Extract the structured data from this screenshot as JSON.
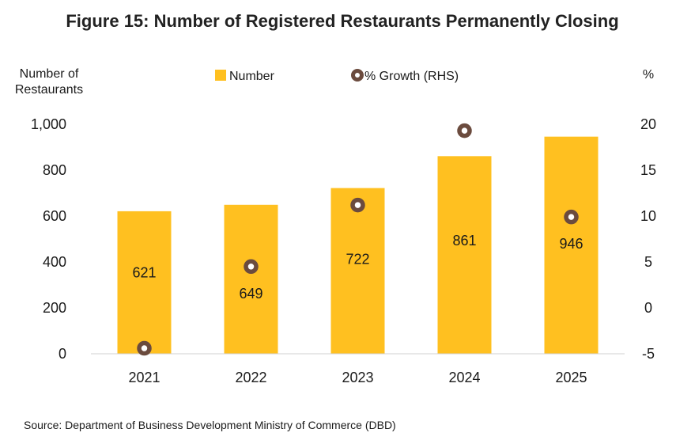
{
  "colors": {
    "bar": "#FFC020",
    "marker_ring": "#6B4B3E",
    "marker_center": "#ffffff"
  },
  "chart_data": {
    "type": "bar",
    "title": "Figure 15: Number of Registered Restaurants Permanently Closing",
    "ylabel_lines": [
      "Number of",
      "Restaurants"
    ],
    "y2label": "%",
    "categories": [
      "2021",
      "2022",
      "2023",
      "2024",
      "2025"
    ],
    "ylim": [
      0,
      1000
    ],
    "yticks": [
      "0",
      "200",
      "400",
      "600",
      "800",
      "1,000"
    ],
    "y2lim": [
      -5,
      20
    ],
    "y2ticks": [
      "-5",
      "0",
      "5",
      "10",
      "15",
      "20"
    ],
    "grid": false,
    "legend_position": "top",
    "series": [
      {
        "name": "Number",
        "kind": "bar",
        "values": [
          621,
          649,
          722,
          861,
          946
        ],
        "labels": [
          "621",
          "649",
          "722",
          "861",
          "946"
        ]
      },
      {
        "name": "% Growth (RHS)",
        "kind": "marker",
        "axis": "right",
        "values": [
          -4.4,
          4.5,
          11.2,
          19.3,
          9.9
        ]
      }
    ],
    "source": "Source: Department of Business Development Ministry of Commerce (DBD)"
  }
}
